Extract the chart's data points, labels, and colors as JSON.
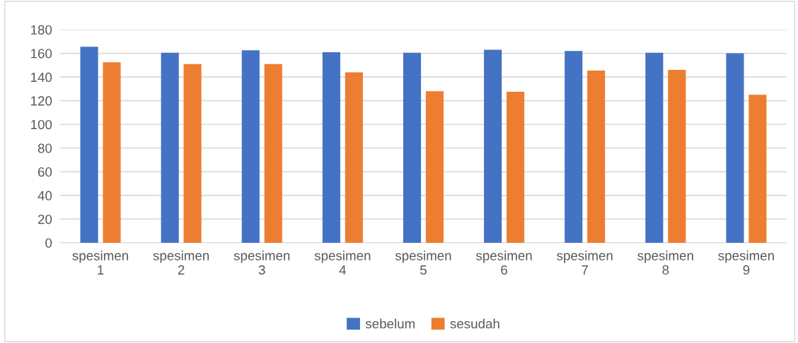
{
  "chart_data": {
    "type": "bar",
    "categories": [
      "spesimen\n1",
      "spesimen\n2",
      "spesimen\n3",
      "spesimen\n4",
      "spesimen\n5",
      "spesimen\n6",
      "spesimen\n7",
      "spesimen\n8",
      "spesimen\n9"
    ],
    "series": [
      {
        "name": "sebelum",
        "color": "#4472c4",
        "values": [
          165.5,
          160.5,
          162.5,
          161,
          160.5,
          163,
          162,
          160.5,
          160
        ]
      },
      {
        "name": "sesudah",
        "color": "#ed7d31",
        "values": [
          152.5,
          151,
          151,
          144,
          128,
          127.5,
          145.5,
          146,
          125
        ]
      }
    ],
    "ylim": [
      0,
      180
    ],
    "yticks": [
      0,
      20,
      40,
      60,
      80,
      100,
      120,
      140,
      160,
      180
    ],
    "grid": "y",
    "legend": "bottom"
  }
}
